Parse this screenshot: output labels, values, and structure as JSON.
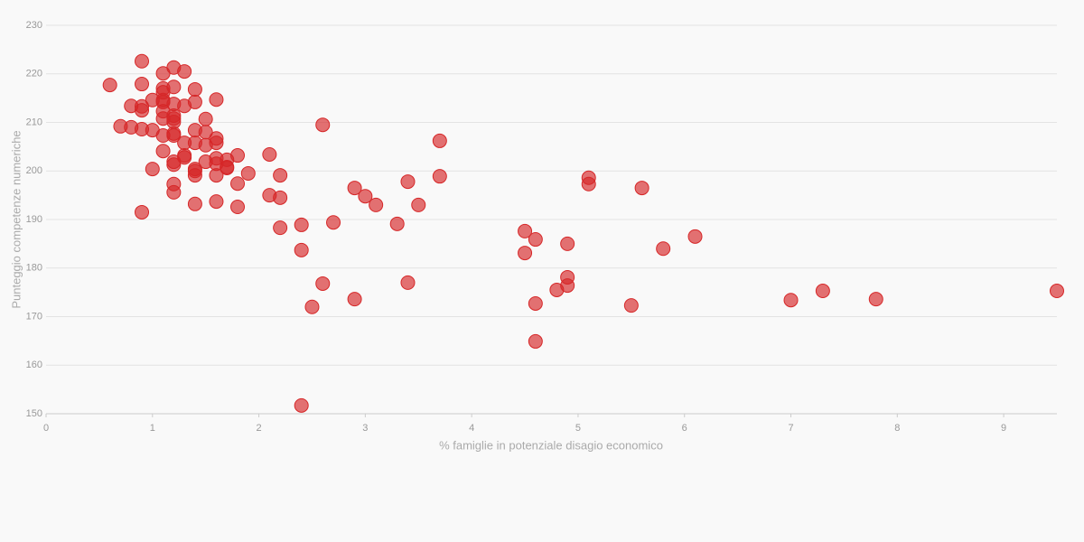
{
  "chart_data": {
    "type": "scatter",
    "x_label": "% famiglie in potenziale disagio economico",
    "y_label": "Punteggio competenze numeriche",
    "color": "#d62728",
    "grid": true,
    "xlim": [
      0,
      9.5
    ],
    "ylim": [
      150,
      230
    ],
    "xticks": [
      0,
      1,
      2,
      3,
      4,
      5,
      6,
      7,
      8,
      9
    ],
    "yticks": [
      150,
      160,
      170,
      180,
      190,
      200,
      210,
      220,
      230
    ],
    "x": [
      0.6,
      0.9,
      0.9,
      0.8,
      0.9,
      0.9,
      0.7,
      0.8,
      0.9,
      1.0,
      1.0,
      1.0,
      0.9,
      1.1,
      1.1,
      1.1,
      1.1,
      1.1,
      1.1,
      1.1,
      1.1,
      1.1,
      1.2,
      1.2,
      1.2,
      1.2,
      1.2,
      1.2,
      1.2,
      1.2,
      1.2,
      1.2,
      1.2,
      1.2,
      1.3,
      1.3,
      1.3,
      1.3,
      1.3,
      1.4,
      1.4,
      1.4,
      1.4,
      1.4,
      1.4,
      1.4,
      1.4,
      1.5,
      1.5,
      1.5,
      1.5,
      1.6,
      1.6,
      1.6,
      1.6,
      1.6,
      1.6,
      1.6,
      1.7,
      1.7,
      1.7,
      1.8,
      1.8,
      1.8,
      1.9,
      2.1,
      2.1,
      2.2,
      2.2,
      2.2,
      2.4,
      2.4,
      2.4,
      2.5,
      2.6,
      2.6,
      2.7,
      2.9,
      2.9,
      3.0,
      3.1,
      3.3,
      3.4,
      3.4,
      3.5,
      3.7,
      3.7,
      4.5,
      4.5,
      4.6,
      4.6,
      4.6,
      4.8,
      4.9,
      4.9,
      4.9,
      5.1,
      5.1,
      5.5,
      5.6,
      5.8,
      6.1,
      7.0,
      7.3,
      7.8,
      9.5
    ],
    "y": [
      217.7,
      222.6,
      217.9,
      213.4,
      213.3,
      212.5,
      209.2,
      209.0,
      208.6,
      208.4,
      214.6,
      200.4,
      191.5,
      220.1,
      217.0,
      216.2,
      214.6,
      214.2,
      212.3,
      210.8,
      207.3,
      204.1,
      221.3,
      217.3,
      213.8,
      211.4,
      210.8,
      210.1,
      207.7,
      207.3,
      201.9,
      201.3,
      197.3,
      195.6,
      220.5,
      213.4,
      205.8,
      203.2,
      202.8,
      216.8,
      214.2,
      208.4,
      205.8,
      200.4,
      200.0,
      199.1,
      193.2,
      210.7,
      208.0,
      205.3,
      201.9,
      214.7,
      206.7,
      205.8,
      202.6,
      201.5,
      199.1,
      193.7,
      202.3,
      200.8,
      200.6,
      203.2,
      197.4,
      192.6,
      199.5,
      203.4,
      195.0,
      199.1,
      194.5,
      188.3,
      188.9,
      183.7,
      151.7,
      172.0,
      209.5,
      176.8,
      189.4,
      196.5,
      173.6,
      194.8,
      193.0,
      189.1,
      197.8,
      177.0,
      193.0,
      206.2,
      198.9,
      187.6,
      183.1,
      185.9,
      172.7,
      164.9,
      175.5,
      185.0,
      178.1,
      176.4,
      198.6,
      197.3,
      172.3,
      196.5,
      184.0,
      186.5,
      173.4,
      175.3,
      173.6,
      175.3
    ]
  }
}
